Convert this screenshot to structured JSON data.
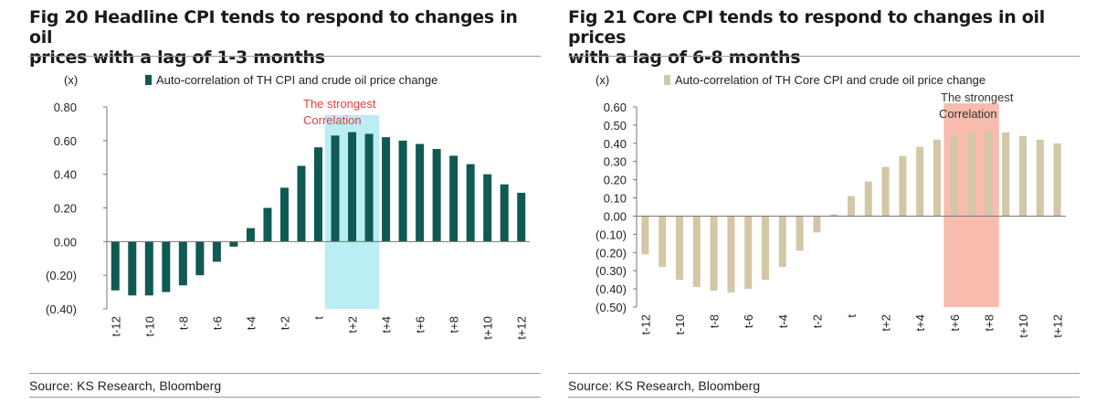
{
  "charts": [
    {
      "title_line1": "Fig 20 Headline CPI tends to respond to changes in oil",
      "title_line2": "prices with a lag of 1-3 months",
      "source": "Source: KS Research, Bloomberg",
      "unit_label": "(x)",
      "annotation_line1": "The strongest",
      "annotation_line2": "Correlation",
      "colors": {
        "bar": "#0f5a52",
        "highlight": "#aeeaf2",
        "annotation": "#e0403a"
      }
    },
    {
      "title_line1": "Fig 21 Core CPI tends to respond to changes in oil prices",
      "title_line2": "with a lag of 6-8 months",
      "source": "Source: KS Research, Bloomberg",
      "unit_label": "(x)",
      "annotation_line1": "The strongest",
      "annotation_line2": "Correlation",
      "colors": {
        "bar": "#d2c7a6",
        "highlight": "#f8b8aa",
        "annotation": "#333333"
      }
    }
  ],
  "chart_data": [
    {
      "type": "bar",
      "title": "Fig 20 Headline CPI tends to respond to changes in oil prices with a lag of 1-3 months",
      "legend": "Auto-correlation of TH CPI and crude oil price change",
      "categories": [
        "t-12",
        "t-11",
        "t-10",
        "t-9",
        "t-8",
        "t-7",
        "t-6",
        "t-5",
        "t-4",
        "t-3",
        "t-2",
        "t-1",
        "t",
        "t+1",
        "t+2",
        "t+3",
        "t+4",
        "t+5",
        "t+6",
        "t+7",
        "t+8",
        "t+9",
        "t+10",
        "t+11",
        "t+12"
      ],
      "x_tick_labels": [
        "t-12",
        "t-10",
        "t-8",
        "t-6",
        "t-4",
        "t-2",
        "t",
        "t+2",
        "t+4",
        "t+6",
        "t+8",
        "t+10",
        "t+12"
      ],
      "values": [
        -0.29,
        -0.32,
        -0.32,
        -0.3,
        -0.26,
        -0.2,
        -0.12,
        -0.03,
        0.08,
        0.2,
        0.32,
        0.45,
        0.56,
        0.63,
        0.65,
        0.64,
        0.62,
        0.6,
        0.58,
        0.55,
        0.51,
        0.46,
        0.4,
        0.34,
        0.29
      ],
      "ylim": [
        -0.4,
        0.8
      ],
      "yticks": [
        -0.4,
        -0.2,
        0.0,
        0.2,
        0.4,
        0.6,
        0.8
      ],
      "ytick_labels": [
        "(0.40)",
        "(0.20)",
        "0.00",
        "0.20",
        "0.40",
        "0.60",
        "0.80"
      ],
      "highlight_range": [
        "t+1",
        "t+3"
      ],
      "annotation": "The strongest Correlation"
    },
    {
      "type": "bar",
      "title": "Fig 21 Core CPI tends to respond to changes in oil prices with a lag of 6-8 months",
      "legend": "Auto-correlation of TH Core CPI and crude oil price change",
      "categories": [
        "t-12",
        "t-11",
        "t-10",
        "t-9",
        "t-8",
        "t-7",
        "t-6",
        "t-5",
        "t-4",
        "t-3",
        "t-2",
        "t-1",
        "t",
        "t+1",
        "t+2",
        "t+3",
        "t+4",
        "t+5",
        "t+6",
        "t+7",
        "t+8",
        "t+9",
        "t+10",
        "t+11",
        "t+12"
      ],
      "x_tick_labels": [
        "t-12",
        "t-10",
        "t-8",
        "t-6",
        "t-4",
        "t-2",
        "t",
        "t+2",
        "t+4",
        "t+6",
        "t+8",
        "t+10",
        "t+12"
      ],
      "values": [
        -0.21,
        -0.28,
        -0.35,
        -0.39,
        -0.41,
        -0.42,
        -0.4,
        -0.35,
        -0.28,
        -0.19,
        -0.09,
        0.01,
        0.11,
        0.19,
        0.27,
        0.33,
        0.38,
        0.42,
        0.44,
        0.46,
        0.47,
        0.46,
        0.44,
        0.42,
        0.4
      ],
      "ylim": [
        -0.5,
        0.6
      ],
      "yticks": [
        -0.5,
        -0.4,
        -0.3,
        -0.2,
        -0.1,
        0.0,
        0.1,
        0.2,
        0.3,
        0.4,
        0.5,
        0.6
      ],
      "ytick_labels": [
        "(0.50)",
        "(0.40)",
        "(0.30)",
        "(0.20)",
        "(0.10)",
        "0.00",
        "0.10",
        "0.20",
        "0.30",
        "0.40",
        "0.50",
        "0.60"
      ],
      "highlight_range": [
        "t+6",
        "t+8"
      ],
      "annotation": "The strongest Correlation"
    }
  ]
}
